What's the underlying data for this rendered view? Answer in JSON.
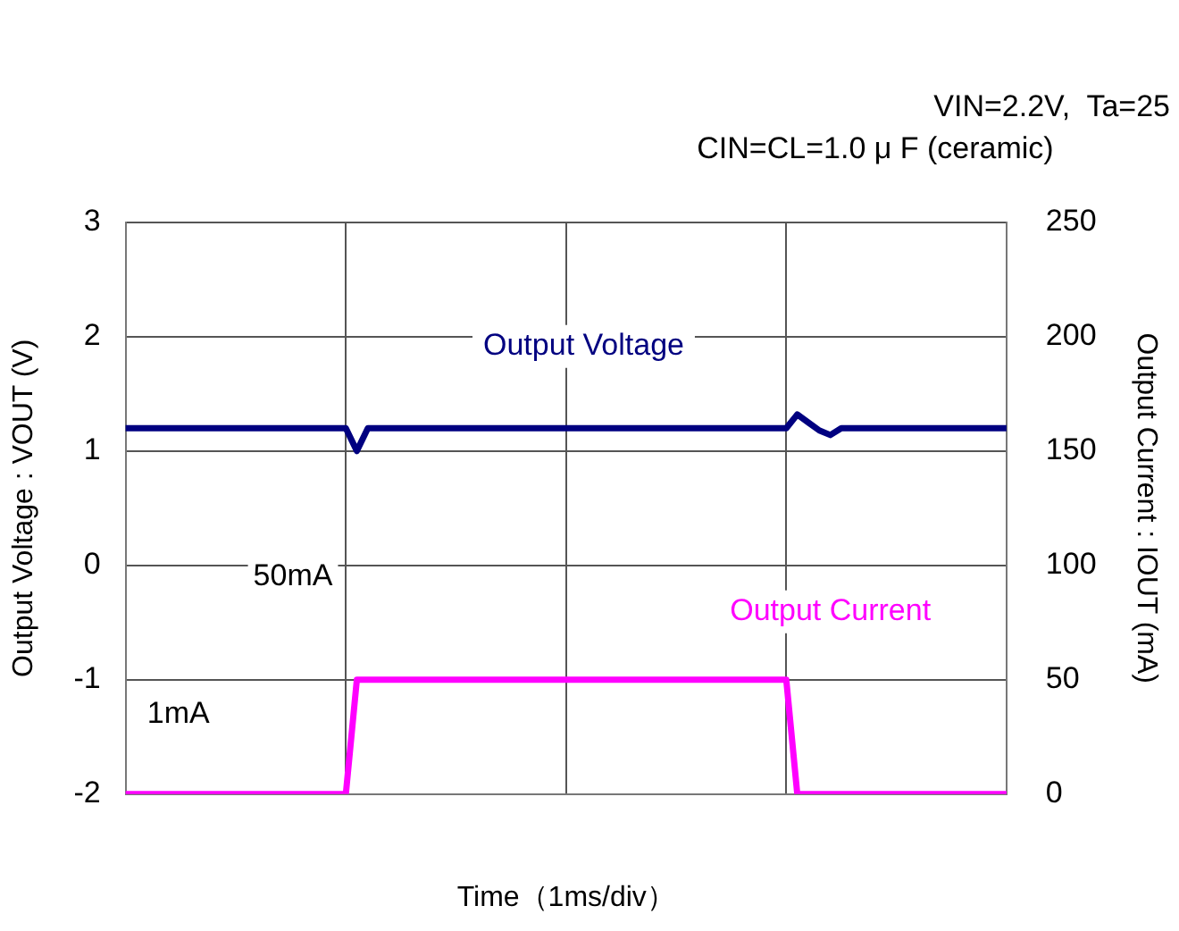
{
  "chart_data": {
    "type": "line",
    "subtitle": "VIN=2.2V,  Ta=25",
    "annotations": [
      "CIN=CL=1.0 μ F (ceramic)",
      "50mA",
      "1mA"
    ],
    "xlabel": "Time（1ms/div）",
    "ylabel": "Output Voltage : VOUT (V)",
    "y2label": "Output Current : IOUT (mA)",
    "categories": [
      null,
      null,
      null,
      null,
      null,
      null,
      null,
      null,
      null,
      null,
      null,
      null,
      null,
      null,
      null,
      null,
      null,
      null,
      null,
      null,
      null,
      null,
      null,
      null,
      null,
      null,
      null,
      null,
      null,
      null,
      null,
      null,
      null,
      null,
      null,
      null,
      null,
      null,
      null,
      null,
      null,
      null,
      null,
      null,
      null,
      null,
      null,
      null,
      null,
      null,
      null,
      null,
      null,
      null,
      null,
      null,
      null,
      null,
      null,
      null,
      null,
      null,
      null,
      null,
      null,
      null,
      null,
      null,
      null,
      null,
      null,
      null,
      null,
      null,
      null,
      null,
      null,
      null,
      null,
      null,
      null
    ],
    "ylim": [
      -2,
      3
    ],
    "yticks": [
      -2,
      -1,
      0,
      1,
      2,
      3
    ],
    "y2lim": [
      0,
      250
    ],
    "y2ticks": [
      0,
      50,
      100,
      150,
      200,
      250
    ],
    "grid": true,
    "legend": false,
    "marker": "none",
    "line_style": "solid",
    "series": [
      {
        "name": "Output Voltage",
        "color": "#000080",
        "values": [
          1.2,
          1.2,
          1.2,
          1.2,
          1.2,
          1.2,
          1.2,
          1.2,
          1.2,
          1.2,
          1.2,
          1.2,
          1.2,
          1.2,
          1.2,
          1.2,
          1.2,
          1.2,
          1.2,
          1.2,
          1.2,
          1.0,
          1.2,
          1.2,
          1.2,
          1.2,
          1.2,
          1.2,
          1.2,
          1.2,
          1.2,
          1.2,
          1.2,
          1.2,
          1.2,
          1.2,
          1.2,
          1.2,
          1.2,
          1.2,
          1.2,
          1.2,
          1.2,
          1.2,
          1.2,
          1.2,
          1.2,
          1.2,
          1.2,
          1.2,
          1.2,
          1.2,
          1.2,
          1.2,
          1.2,
          1.2,
          1.2,
          1.2,
          1.2,
          1.2,
          1.2,
          1.32,
          1.25,
          1.18,
          1.14,
          1.2,
          1.2,
          1.2,
          1.2,
          1.2,
          1.2,
          1.2,
          1.2,
          1.2,
          1.2,
          1.2,
          1.2,
          1.2,
          1.2,
          1.2,
          1.2
        ]
      },
      {
        "name": "Output Current",
        "color": "#ff00ff",
        "axis": "y2",
        "values": [
          0,
          0,
          0,
          0,
          0,
          0,
          0,
          0,
          0,
          0,
          0,
          0,
          0,
          0,
          0,
          0,
          0,
          0,
          0,
          0,
          0,
          50,
          50,
          50,
          50,
          50,
          50,
          50,
          50,
          50,
          50,
          50,
          50,
          50,
          50,
          50,
          50,
          50,
          50,
          50,
          50,
          50,
          50,
          50,
          50,
          50,
          50,
          50,
          50,
          50,
          50,
          50,
          50,
          50,
          50,
          50,
          50,
          50,
          50,
          50,
          50,
          0,
          0,
          0,
          0,
          0,
          0,
          0,
          0,
          0,
          0,
          0,
          0,
          0,
          0,
          0,
          0,
          0,
          0,
          0,
          0
        ]
      }
    ]
  }
}
